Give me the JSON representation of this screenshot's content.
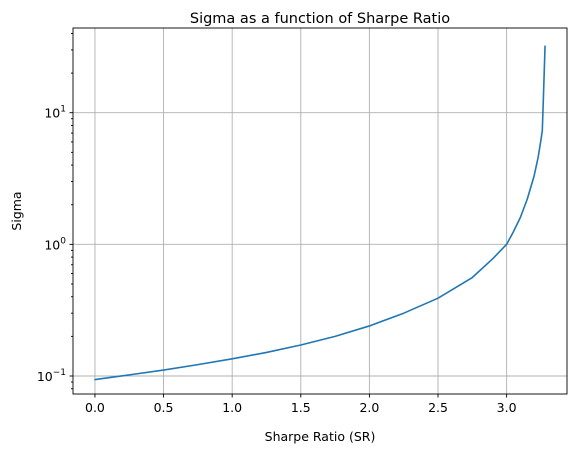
{
  "chart_data": {
    "type": "line",
    "title": "Sigma as a function of Sharpe Ratio",
    "xlabel": "Sharpe Ratio (SR)",
    "ylabel": "Sigma",
    "xlim": [
      -0.16,
      3.44
    ],
    "ylim": [
      0.073,
      44
    ],
    "yscale": "log",
    "grid": true,
    "x_ticks": [
      0.0,
      0.5,
      1.0,
      1.5,
      2.0,
      2.5,
      3.0
    ],
    "x_tick_labels": [
      "0.0",
      "0.5",
      "1.0",
      "1.5",
      "2.0",
      "2.5",
      "3.0"
    ],
    "y_ticks": [
      {
        "value": 0.1,
        "base": "10",
        "exp": "−1"
      },
      {
        "value": 1,
        "base": "10",
        "exp": "0"
      },
      {
        "value": 10,
        "base": "10",
        "exp": "1"
      }
    ],
    "series": [
      {
        "color": "#1f77b4",
        "x": [
          0.0,
          0.25,
          0.5,
          0.75,
          1.0,
          1.25,
          1.5,
          1.75,
          2.0,
          2.25,
          2.5,
          2.75,
          2.9,
          3.0,
          3.05,
          3.1,
          3.15,
          3.2,
          3.23,
          3.25,
          3.26,
          3.27,
          3.28
        ],
        "y": [
          0.094,
          0.102,
          0.111,
          0.122,
          0.135,
          0.151,
          0.172,
          0.2,
          0.24,
          0.3,
          0.39,
          0.56,
          0.78,
          1.0,
          1.25,
          1.6,
          2.2,
          3.3,
          4.6,
          6.2,
          7.3,
          15.0,
          32.0
        ]
      }
    ]
  }
}
